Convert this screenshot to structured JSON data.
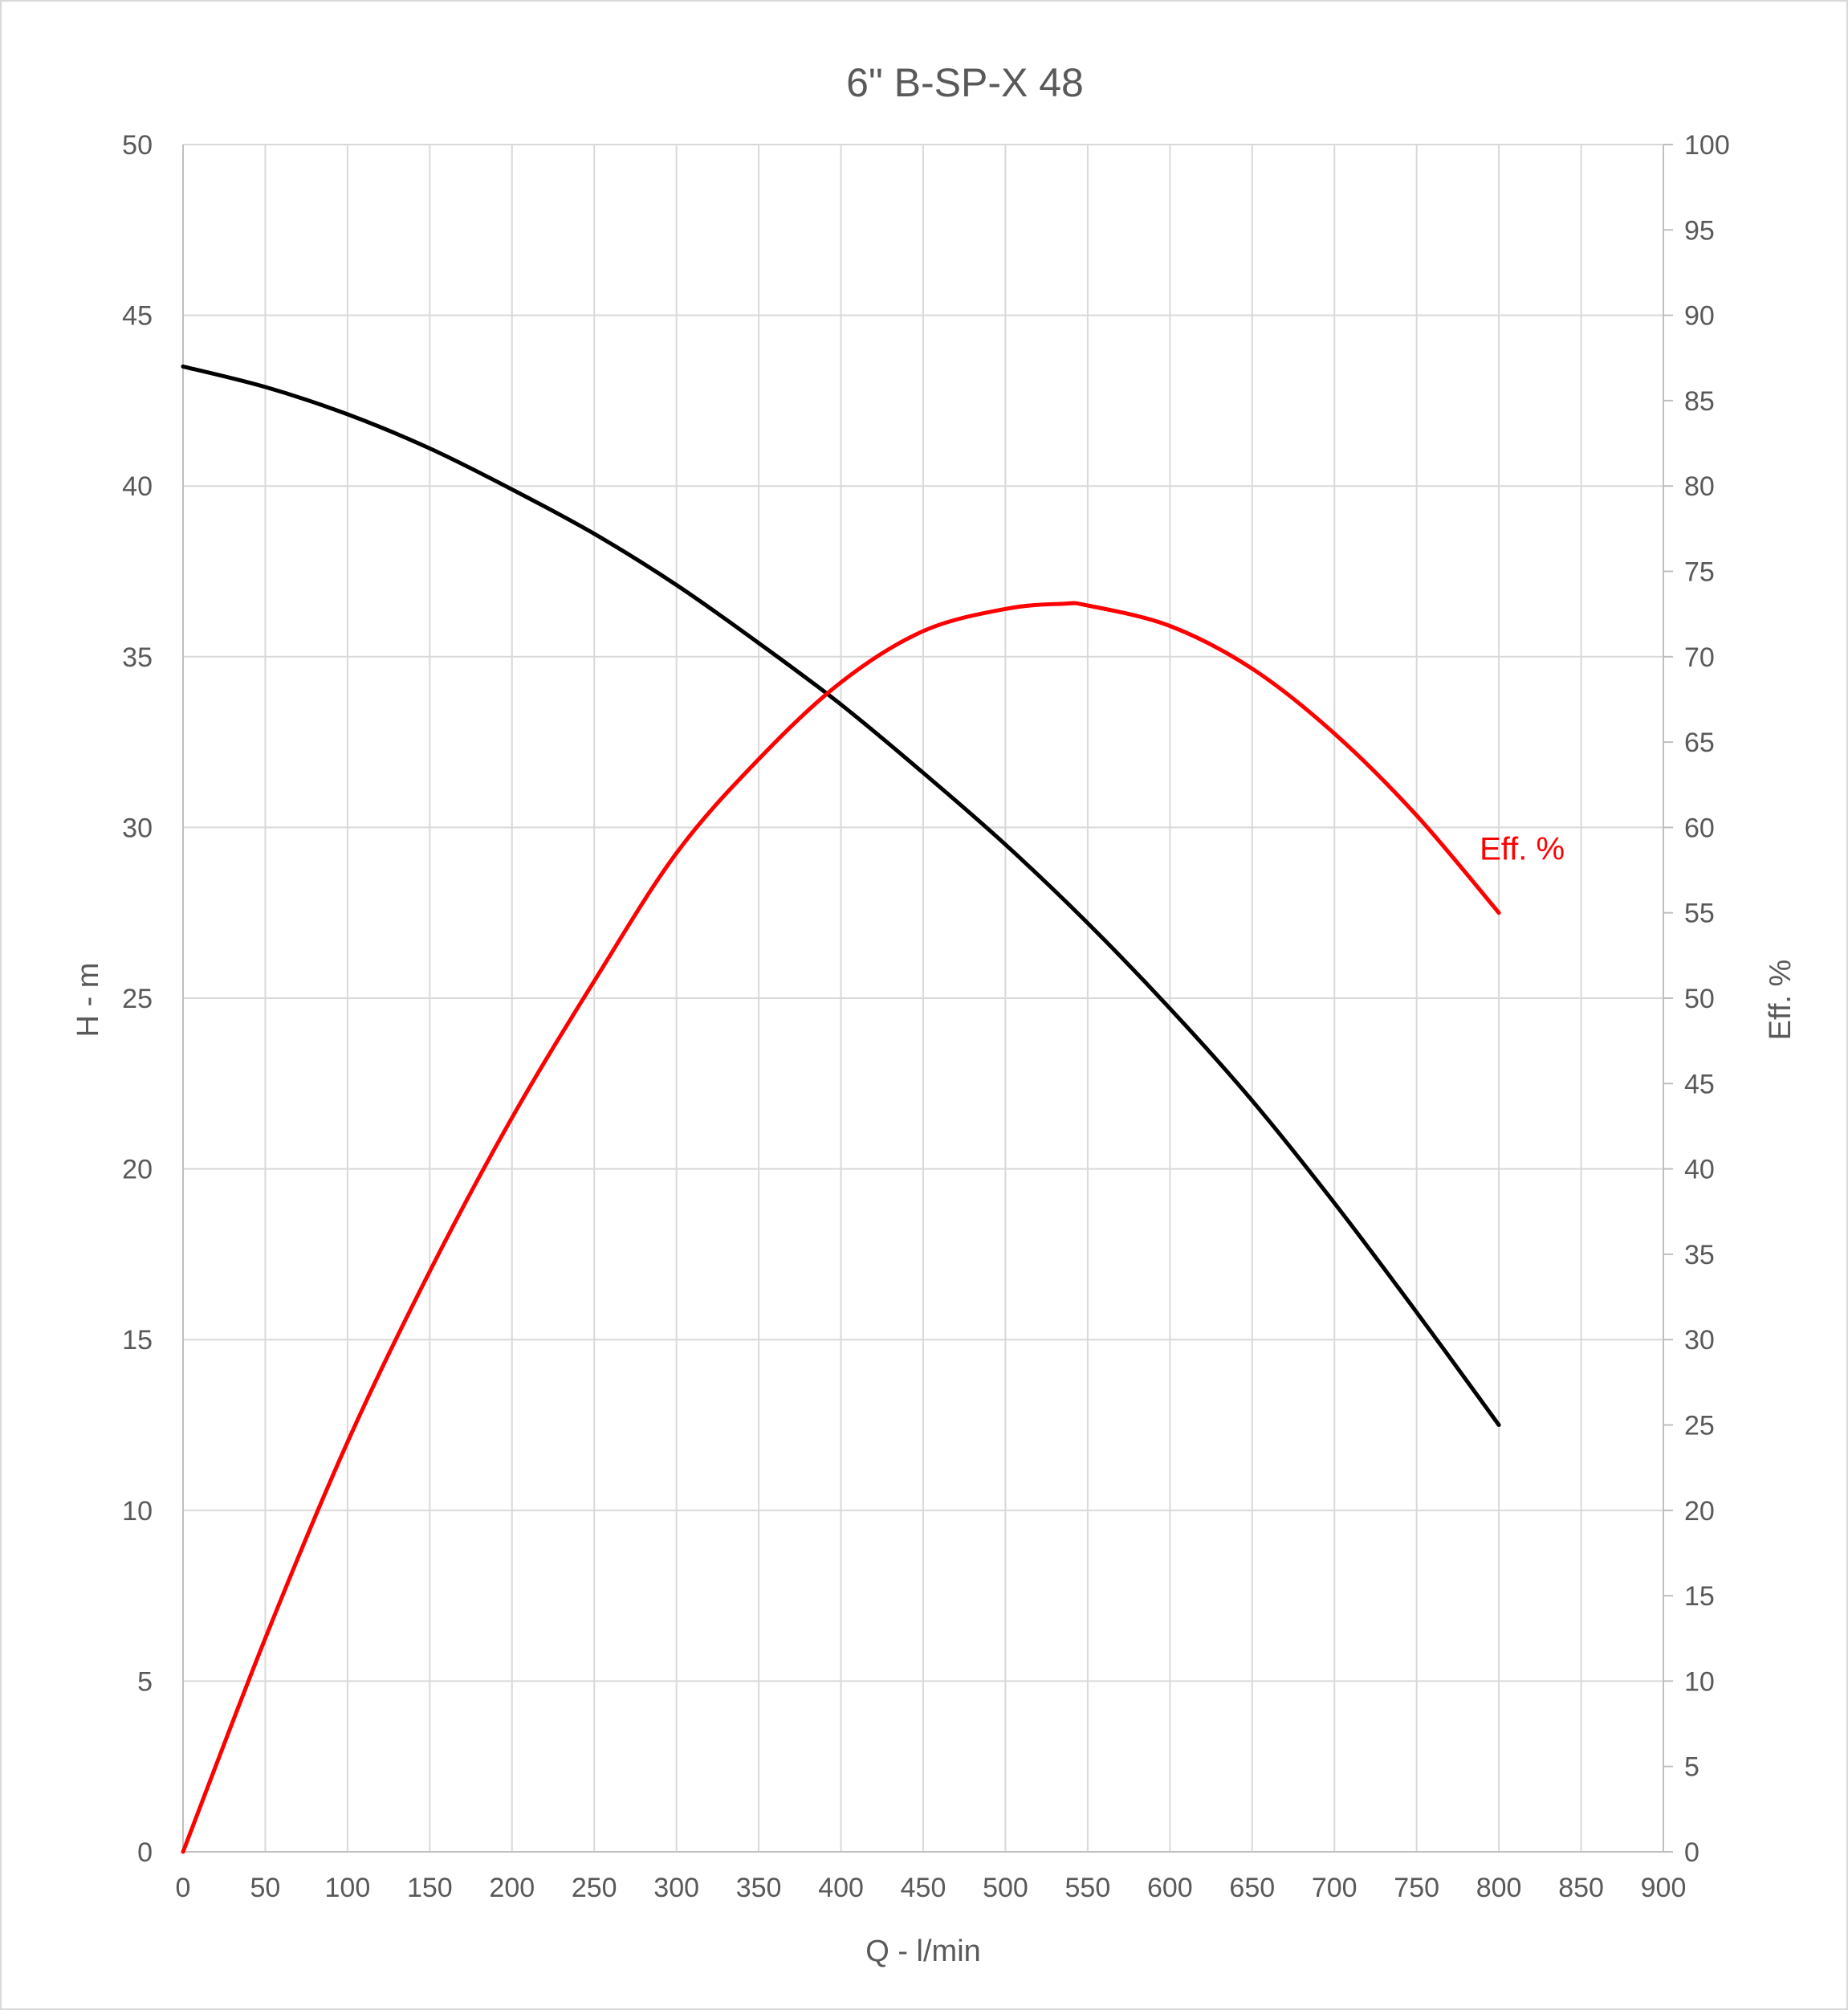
{
  "chart_data": {
    "type": "line",
    "title": "6\" B-SP-X 48",
    "xlabel": "Q - l/min",
    "ylabel": "H - m",
    "y2label": "Eff. %",
    "xlim": [
      0,
      900
    ],
    "ylim": [
      0,
      50
    ],
    "y2lim": [
      0,
      100
    ],
    "x_ticks": [
      "0",
      "50",
      "100",
      "150",
      "200",
      "250",
      "300",
      "350",
      "400",
      "450",
      "500",
      "550",
      "600",
      "650",
      "700",
      "750",
      "800",
      "850",
      "900"
    ],
    "y_ticks": [
      "0",
      "5",
      "10",
      "15",
      "20",
      "25",
      "30",
      "35",
      "40",
      "45",
      "50"
    ],
    "y2_ticks": [
      "0",
      "5",
      "10",
      "15",
      "20",
      "25",
      "30",
      "35",
      "40",
      "45",
      "50",
      "55",
      "60",
      "65",
      "70",
      "75",
      "80",
      "85",
      "90",
      "95",
      "100"
    ],
    "grid": true,
    "legend": "none",
    "series": [
      {
        "axis": "left",
        "color": "#000000",
        "x": [
          0,
          50,
          100,
          150,
          200,
          250,
          300,
          350,
          400,
          450,
          500,
          550,
          600,
          650,
          700,
          750,
          800
        ],
        "y": [
          43.5,
          42.9,
          42.1,
          41.1,
          39.9,
          38.6,
          37.1,
          35.4,
          33.6,
          31.6,
          29.5,
          27.2,
          24.7,
          22.0,
          19.0,
          15.8,
          12.5
        ]
      },
      {
        "name": "Eff. %",
        "axis": "right",
        "color": "#ff0000",
        "x": [
          0,
          50,
          100,
          150,
          200,
          250,
          300,
          350,
          400,
          450,
          500,
          535,
          550,
          600,
          650,
          700,
          750,
          800
        ],
        "y": [
          0,
          12.5,
          24,
          34,
          43,
          51,
          58.5,
          64,
          68.5,
          71.5,
          72.8,
          73.1,
          73.0,
          71.8,
          69.3,
          65.5,
          60.7,
          55
        ]
      }
    ]
  }
}
